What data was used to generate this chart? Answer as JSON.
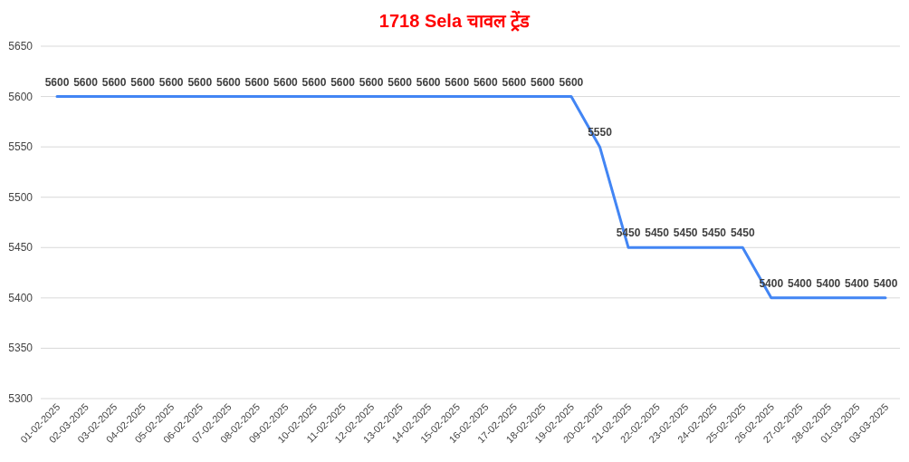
{
  "chart_data": {
    "type": "line",
    "title": "1718 Sela चावल ट्रेंड",
    "categories": [
      "01-02-2025",
      "02-03-2025",
      "03-02-2025",
      "04-02-2025",
      "05-02-2025",
      "06-02-2025",
      "07-02-2025",
      "08-02-2025",
      "09-02-2025",
      "10-02-2025",
      "11-02-2025",
      "12-02-2025",
      "13-02-2025",
      "14-02-2025",
      "15-02-2025",
      "16-02-2025",
      "17-02-2025",
      "18-02-2025",
      "19-02-2025",
      "20-02-2025",
      "21-02-2025",
      "22-02-2025",
      "23-02-2025",
      "24-02-2025",
      "25-02-2025",
      "26-02-2025",
      "27-02-2025",
      "28-02-2025",
      "01-03-2025",
      "03-03-2025"
    ],
    "series": [
      {
        "color": "#4285f4",
        "values": [
          5600,
          5600,
          5600,
          5600,
          5600,
          5600,
          5600,
          5600,
          5600,
          5600,
          5600,
          5600,
          5600,
          5600,
          5600,
          5600,
          5600,
          5600,
          5600,
          5550,
          5450,
          5450,
          5450,
          5450,
          5450,
          5400,
          5400,
          5400,
          5400,
          5400
        ]
      }
    ],
    "ylim": [
      5300,
      5650
    ],
    "yticks": [
      5300,
      5350,
      5400,
      5450,
      5500,
      5550,
      5600,
      5650
    ],
    "grid": "y",
    "data_labels": true
  }
}
